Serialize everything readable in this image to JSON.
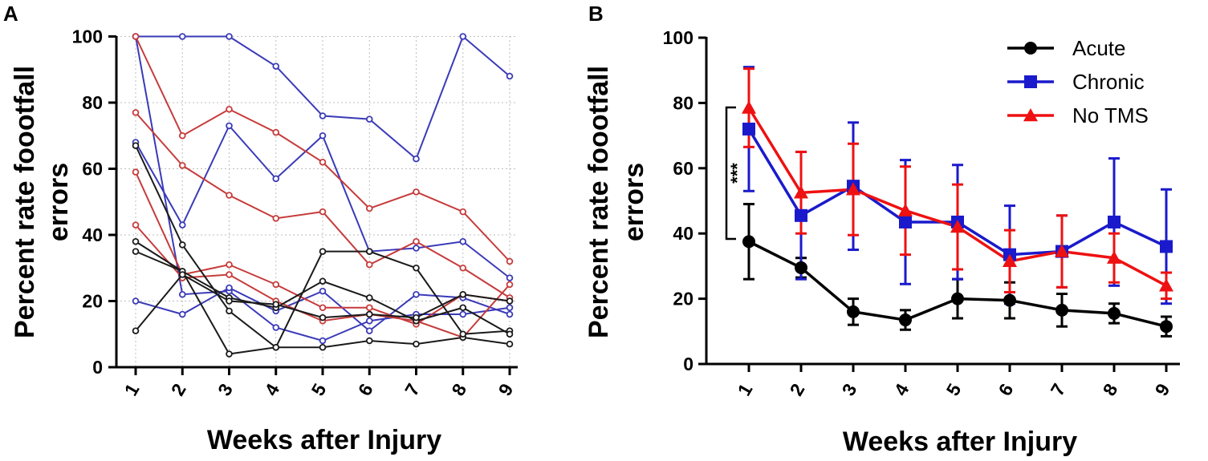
{
  "chart_data": [
    {
      "panel": "A",
      "type": "line",
      "xlabel": "Weeks after Injury",
      "ylabel_line1": "Percent rate foootfall",
      "ylabel_line2": "errors",
      "x": [
        1,
        2,
        3,
        4,
        5,
        6,
        7,
        8,
        9
      ],
      "xticks": [
        "1",
        "2",
        "3",
        "4",
        "5",
        "6",
        "7",
        "8",
        "9"
      ],
      "ylim": [
        0,
        100
      ],
      "yticks": [
        "0",
        "20",
        "40",
        "60",
        "80",
        "100"
      ],
      "grid": "dotted",
      "colors": {
        "Acute": "#1a1a1a",
        "Chronic": "#3a3ab8",
        "No TMS": "#c63b3b"
      },
      "series": [
        {
          "group": "Chronic",
          "values": [
            100,
            100,
            100,
            91,
            76,
            75,
            63,
            100,
            88
          ]
        },
        {
          "group": "Chronic",
          "values": [
            68,
            43,
            73,
            57,
            70,
            35,
            36,
            38,
            27
          ]
        },
        {
          "group": "Chronic",
          "values": [
            100,
            22,
            23,
            12,
            8,
            14,
            16,
            16,
            18
          ]
        },
        {
          "group": "Chronic",
          "values": [
            20,
            16,
            24,
            17,
            23,
            11,
            22,
            21,
            16
          ]
        },
        {
          "group": "No TMS",
          "values": [
            100,
            70,
            78,
            71,
            62,
            48,
            53,
            47,
            32
          ]
        },
        {
          "group": "No TMS",
          "values": [
            77,
            61,
            52,
            45,
            47,
            31,
            38,
            30,
            21
          ]
        },
        {
          "group": "No TMS",
          "values": [
            59,
            28,
            31,
            25,
            18,
            18,
            13,
            22,
            20
          ]
        },
        {
          "group": "No TMS",
          "values": [
            43,
            27,
            28,
            20,
            14,
            16,
            14,
            9,
            25
          ]
        },
        {
          "group": "Acute",
          "values": [
            67,
            37,
            17,
            6,
            6,
            8,
            7,
            9,
            7
          ]
        },
        {
          "group": "Acute",
          "values": [
            38,
            29,
            4,
            6,
            35,
            35,
            30,
            10,
            11
          ]
        },
        {
          "group": "Acute",
          "values": [
            35,
            29,
            21,
            18,
            26,
            21,
            14,
            18,
            10
          ]
        },
        {
          "group": "Acute",
          "values": [
            11,
            28,
            20,
            19,
            15,
            16,
            15,
            22,
            20
          ]
        }
      ]
    },
    {
      "panel": "B",
      "type": "line",
      "xlabel": "Weeks after Injury",
      "ylabel_line1": "Percent rate foootfall",
      "ylabel_line2": "errors",
      "x": [
        1,
        2,
        3,
        4,
        5,
        6,
        7,
        8,
        9
      ],
      "xticks": [
        "1",
        "2",
        "3",
        "4",
        "5",
        "6",
        "7",
        "8",
        "9"
      ],
      "ylim": [
        0,
        100
      ],
      "yticks": [
        "0",
        "20",
        "40",
        "60",
        "80",
        "100"
      ],
      "legend": "top-right",
      "annotation": "***",
      "series": [
        {
          "name": "Acute",
          "color": "#000000",
          "marker": "circle",
          "values": [
            37.5,
            29.5,
            16,
            13.5,
            20,
            19.5,
            16.5,
            15.5,
            11.5
          ],
          "errors": [
            11.5,
            3,
            4,
            3,
            6,
            5.5,
            5,
            3,
            3
          ]
        },
        {
          "name": "Chronic",
          "color": "#1a1acc",
          "marker": "square",
          "values": [
            72,
            45.5,
            54.5,
            43.5,
            43.5,
            33.5,
            34.5,
            43.5,
            36
          ],
          "errors": [
            19,
            19.5,
            19.5,
            19,
            17.5,
            15,
            11,
            19.5,
            17.5
          ]
        },
        {
          "name": "No TMS",
          "color": "#ee1111",
          "marker": "triangle",
          "values": [
            78.5,
            52.5,
            53.5,
            47,
            42,
            31.5,
            34.5,
            32.5,
            24
          ],
          "errors": [
            12,
            12.5,
            14,
            13.5,
            13,
            9.5,
            11,
            7.5,
            4
          ]
        }
      ]
    }
  ]
}
